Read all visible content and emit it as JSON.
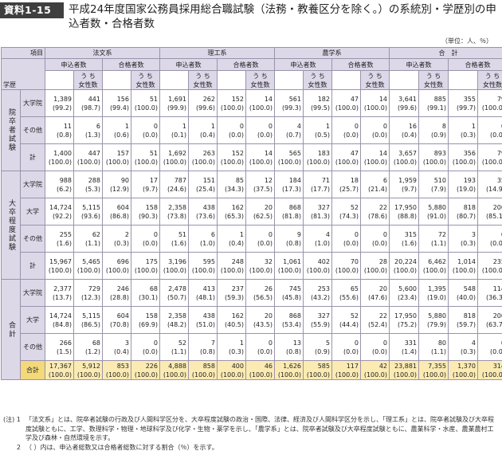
{
  "badge": "資料1-15",
  "title": "平成24年度国家公務員採用総合職試験（法務・教養区分を除く。）の系統別・学歴別の申込者数・合格者数",
  "unit": "（単位：人、％）",
  "header": {
    "item": "項目",
    "education": "学歴",
    "groups": [
      "法文系",
      "理工系",
      "農学系",
      "合　計"
    ],
    "applicants": "申込者数",
    "passers": "合格者数",
    "women_line1": "う ち",
    "women_line2": "女性数"
  },
  "rows": [
    {
      "group": "院卒者試験",
      "sub": "大学院",
      "cells": [
        [
          "1,389",
          "(99.2)"
        ],
        [
          "441",
          "(98.7)"
        ],
        [
          "156",
          "(99.4)"
        ],
        [
          "51",
          "(100.0)"
        ],
        [
          "1,691",
          "(99.9)"
        ],
        [
          "262",
          "(99.6)"
        ],
        [
          "152",
          "(100.0)"
        ],
        [
          "14",
          "(100.0)"
        ],
        [
          "561",
          "(99.3)"
        ],
        [
          "182",
          "(99.5)"
        ],
        [
          "47",
          "(100.0)"
        ],
        [
          "14",
          "(100.0)"
        ],
        [
          "3,641",
          "(99.6)"
        ],
        [
          "885",
          "(99.1)"
        ],
        [
          "355",
          "(99.7)"
        ],
        [
          "79",
          "(100.0)"
        ]
      ]
    },
    {
      "group": "",
      "sub": "その他",
      "cells": [
        [
          "11",
          "(0.8)"
        ],
        [
          "6",
          "(1.3)"
        ],
        [
          "1",
          "(0.6)"
        ],
        [
          "0",
          "(0.0)"
        ],
        [
          "1",
          "(0.1)"
        ],
        [
          "1",
          "(0.4)"
        ],
        [
          "0",
          "(0.0)"
        ],
        [
          "0",
          "(0.0)"
        ],
        [
          "4",
          "(0.7)"
        ],
        [
          "1",
          "(0.5)"
        ],
        [
          "0",
          "(0.0)"
        ],
        [
          "0",
          "(0.0)"
        ],
        [
          "16",
          "(0.4)"
        ],
        [
          "8",
          "(0.9)"
        ],
        [
          "1",
          "(0.3)"
        ],
        [
          "0",
          "(0.0)"
        ]
      ]
    },
    {
      "group": "",
      "sub": "計",
      "total": true,
      "cells": [
        [
          "1,400",
          "(100.0)"
        ],
        [
          "447",
          "(100.0)"
        ],
        [
          "157",
          "(100.0)"
        ],
        [
          "51",
          "(100.0)"
        ],
        [
          "1,692",
          "(100.0)"
        ],
        [
          "263",
          "(100.0)"
        ],
        [
          "152",
          "(100.0)"
        ],
        [
          "14",
          "(100.0)"
        ],
        [
          "565",
          "(100.0)"
        ],
        [
          "183",
          "(100.0)"
        ],
        [
          "47",
          "(100.0)"
        ],
        [
          "14",
          "(100.0)"
        ],
        [
          "3,657",
          "(100.0)"
        ],
        [
          "893",
          "(100.0)"
        ],
        [
          "356",
          "(100.0)"
        ],
        [
          "79",
          "(100.0)"
        ]
      ]
    },
    {
      "group": "大卒程度試験",
      "sub": "大学院",
      "cells": [
        [
          "988",
          "(6.2)"
        ],
        [
          "288",
          "(5.3)"
        ],
        [
          "90",
          "(12.9)"
        ],
        [
          "17",
          "(9.7)"
        ],
        [
          "787",
          "(24.6)"
        ],
        [
          "151",
          "(25.4)"
        ],
        [
          "85",
          "(34.3)"
        ],
        [
          "12",
          "(37.5)"
        ],
        [
          "184",
          "(17.3)"
        ],
        [
          "71",
          "(17.7)"
        ],
        [
          "18",
          "(25.7)"
        ],
        [
          "6",
          "(21.4)"
        ],
        [
          "1,959",
          "(9.7)"
        ],
        [
          "510",
          "(7.9)"
        ],
        [
          "193",
          "(19.0)"
        ],
        [
          "35",
          "(14.9)"
        ]
      ]
    },
    {
      "group": "",
      "sub": "大学",
      "cells": [
        [
          "14,724",
          "(92.2)"
        ],
        [
          "5,115",
          "(93.6)"
        ],
        [
          "604",
          "(86.8)"
        ],
        [
          "158",
          "(90.3)"
        ],
        [
          "2,358",
          "(73.8)"
        ],
        [
          "438",
          "(73.6)"
        ],
        [
          "162",
          "(65.3)"
        ],
        [
          "20",
          "(62.5)"
        ],
        [
          "868",
          "(81.8)"
        ],
        [
          "327",
          "(81.3)"
        ],
        [
          "52",
          "(74.3)"
        ],
        [
          "22",
          "(78.6)"
        ],
        [
          "17,950",
          "(88.8)"
        ],
        [
          "5,880",
          "(91.0)"
        ],
        [
          "818",
          "(80.7)"
        ],
        [
          "200",
          "(85.1)"
        ]
      ]
    },
    {
      "group": "",
      "sub": "その他",
      "cells": [
        [
          "255",
          "(1.6)"
        ],
        [
          "62",
          "(1.1)"
        ],
        [
          "2",
          "(0.3)"
        ],
        [
          "0",
          "(0.0)"
        ],
        [
          "51",
          "(1.6)"
        ],
        [
          "6",
          "(1.0)"
        ],
        [
          "1",
          "(0.4)"
        ],
        [
          "0",
          "(0.0)"
        ],
        [
          "9",
          "(0.8)"
        ],
        [
          "4",
          "(1.0)"
        ],
        [
          "0",
          "(0.0)"
        ],
        [
          "0",
          "(0.0)"
        ],
        [
          "315",
          "(1.6)"
        ],
        [
          "72",
          "(1.1)"
        ],
        [
          "3",
          "(0.3)"
        ],
        [
          "0",
          "(0.0)"
        ]
      ]
    },
    {
      "group": "",
      "sub": "計",
      "total": true,
      "cells": [
        [
          "15,967",
          "(100.0)"
        ],
        [
          "5,465",
          "(100.0)"
        ],
        [
          "696",
          "(100.0)"
        ],
        [
          "175",
          "(100.0)"
        ],
        [
          "3,196",
          "(100.0)"
        ],
        [
          "595",
          "(100.0)"
        ],
        [
          "248",
          "(100.0)"
        ],
        [
          "32",
          "(100.0)"
        ],
        [
          "1,061",
          "(100.0)"
        ],
        [
          "402",
          "(100.0)"
        ],
        [
          "70",
          "(100.0)"
        ],
        [
          "28",
          "(100.0)"
        ],
        [
          "20,224",
          "(100.0)"
        ],
        [
          "6,462",
          "(100.0)"
        ],
        [
          "1,014",
          "(100.0)"
        ],
        [
          "235",
          "(100.0)"
        ]
      ]
    },
    {
      "group": "合計",
      "sub": "大学院",
      "cells": [
        [
          "2,377",
          "(13.7)"
        ],
        [
          "729",
          "(12.3)"
        ],
        [
          "246",
          "(28.8)"
        ],
        [
          "68",
          "(30.1)"
        ],
        [
          "2,478",
          "(50.7)"
        ],
        [
          "413",
          "(48.1)"
        ],
        [
          "237",
          "(59.3)"
        ],
        [
          "26",
          "(56.5)"
        ],
        [
          "745",
          "(45.8)"
        ],
        [
          "253",
          "(43.2)"
        ],
        [
          "65",
          "(55.6)"
        ],
        [
          "20",
          "(47.6)"
        ],
        [
          "5,600",
          "(23.4)"
        ],
        [
          "1,395",
          "(19.0)"
        ],
        [
          "548",
          "(40.0)"
        ],
        [
          "114",
          "(36.3)"
        ]
      ]
    },
    {
      "group": "",
      "sub": "大学",
      "cells": [
        [
          "14,724",
          "(84.8)"
        ],
        [
          "5,115",
          "(86.5)"
        ],
        [
          "604",
          "(70.8)"
        ],
        [
          "158",
          "(69.9)"
        ],
        [
          "2,358",
          "(48.2)"
        ],
        [
          "438",
          "(51.0)"
        ],
        [
          "162",
          "(40.5)"
        ],
        [
          "20",
          "(43.5)"
        ],
        [
          "868",
          "(53.4)"
        ],
        [
          "327",
          "(55.9)"
        ],
        [
          "52",
          "(44.4)"
        ],
        [
          "22",
          "(52.4)"
        ],
        [
          "17,950",
          "(75.2)"
        ],
        [
          "5,880",
          "(79.9)"
        ],
        [
          "818",
          "(59.7)"
        ],
        [
          "200",
          "(63.7)"
        ]
      ]
    },
    {
      "group": "",
      "sub": "その他",
      "cells": [
        [
          "266",
          "(1.5)"
        ],
        [
          "68",
          "(1.2)"
        ],
        [
          "3",
          "(0.4)"
        ],
        [
          "0",
          "(0.0)"
        ],
        [
          "52",
          "(1.1)"
        ],
        [
          "7",
          "(0.8)"
        ],
        [
          "1",
          "(0.3)"
        ],
        [
          "0",
          "(0.0)"
        ],
        [
          "13",
          "(0.8)"
        ],
        [
          "5",
          "(0.9)"
        ],
        [
          "0",
          "(0.0)"
        ],
        [
          "0",
          "(0.0)"
        ],
        [
          "331",
          "(1.4)"
        ],
        [
          "80",
          "(1.1)"
        ],
        [
          "4",
          "(0.3)"
        ],
        [
          "0",
          "(0.0)"
        ]
      ]
    },
    {
      "group": "",
      "sub": "合計",
      "grand": true,
      "cells": [
        [
          "17,367",
          "(100.0)"
        ],
        [
          "5,912",
          "(100.0)"
        ],
        [
          "853",
          "(100.0)"
        ],
        [
          "226",
          "(100.0)"
        ],
        [
          "4,888",
          "(100.0)"
        ],
        [
          "858",
          "(100.0)"
        ],
        [
          "400",
          "(100.0)"
        ],
        [
          "46",
          "(100.0)"
        ],
        [
          "1,626",
          "(100.0)"
        ],
        [
          "585",
          "(100.0)"
        ],
        [
          "117",
          "(100.0)"
        ],
        [
          "42",
          "(100.0)"
        ],
        [
          "23,881",
          "(100.0)"
        ],
        [
          "7,355",
          "(100.0)"
        ],
        [
          "1,370",
          "(100.0)"
        ],
        [
          "314",
          "(100.0)"
        ]
      ]
    }
  ],
  "notes": [
    {
      "k": "(注) 1",
      "t": "「法文系」とは、院卒者試験の行政及び人間科学区分を、大卒程度試験の政治・国際、法律、経済及び人間科学区分を示し、「理工系」とは、院卒者試験及び大卒程度試験ともに、工学、数理科学・物理・地球科学及び化学・生物・薬学を示し、「農学系」とは、院卒者試験及び大卒程度試験ともに、農業科学・水産、農業農村工学及び森林・自然環境を示す。"
    },
    {
      "k": "2",
      "t": "（ ）内は、申込者総数又は合格者総数に対する割合（％）を示す。"
    }
  ]
}
